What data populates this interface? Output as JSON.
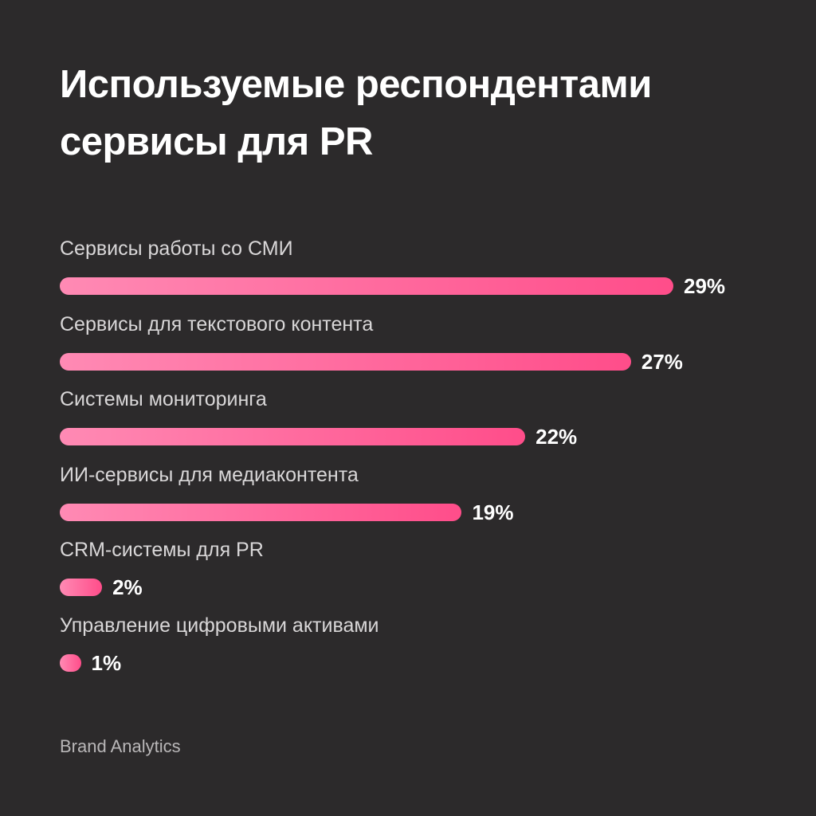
{
  "title_line1": "Используемые респондентами",
  "title_line2": "сервисы для PR",
  "footer": "Brand Analytics",
  "colors": {
    "background": "#2c2a2b",
    "bar_start": "#ff8ab4",
    "bar_end": "#ff4d8a"
  },
  "chart_data": {
    "type": "bar",
    "orientation": "horizontal",
    "title": "Используемые респондентами сервисы для PR",
    "xlabel": "",
    "ylabel": "",
    "unit": "%",
    "xlim": [
      0,
      29
    ],
    "grid": false,
    "categories": [
      "Сервисы работы со СМИ",
      "Сервисы для текстового контента",
      "Системы мониторинга",
      "ИИ-сервисы для медиаконтента",
      "CRM-системы для PR",
      "Управление цифровыми активами"
    ],
    "values": [
      29,
      27,
      22,
      19,
      2,
      1
    ],
    "value_labels": [
      "29%",
      "27%",
      "22%",
      "19%",
      "2%",
      "1%"
    ]
  }
}
